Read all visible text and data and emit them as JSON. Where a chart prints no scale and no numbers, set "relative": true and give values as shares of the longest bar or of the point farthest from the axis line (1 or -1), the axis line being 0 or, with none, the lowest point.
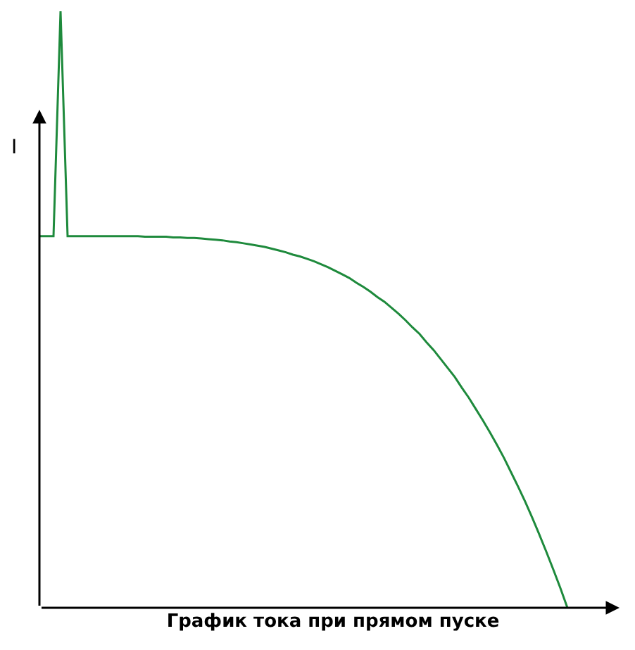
{
  "chart_data": {
    "type": "line",
    "relative": true,
    "xlabel": "График тока при прямом пуске",
    "ylabel": "I",
    "categories": [
      null,
      null,
      null,
      null,
      null,
      null,
      null,
      null,
      null,
      null,
      null,
      null,
      null,
      null,
      null,
      null,
      null,
      null,
      null,
      null,
      null,
      null,
      null,
      null,
      null,
      null,
      null,
      null,
      null,
      null,
      null,
      null,
      null,
      null,
      null,
      null,
      null,
      null,
      null,
      null,
      null,
      null,
      null,
      null,
      null,
      null,
      null,
      null,
      null,
      null,
      null,
      null,
      null,
      null,
      null,
      null,
      null,
      null,
      null,
      null,
      null,
      null,
      null,
      null,
      null,
      null,
      null,
      null,
      null,
      null,
      null,
      null,
      null,
      null,
      null,
      null
    ],
    "series": [
      {
        "color": "#1e8a3c",
        "values": [
          0.623,
          0.623,
          0.623,
          1,
          0.623,
          0.623,
          0.623,
          0.623,
          0.623,
          0.623,
          0.623,
          0.623,
          0.623,
          0.623,
          0.623,
          0.622,
          0.622,
          0.622,
          0.622,
          0.621,
          0.621,
          0.62,
          0.62,
          0.619,
          0.618,
          0.617,
          0.616,
          0.614,
          0.613,
          0.611,
          0.609,
          0.607,
          0.605,
          0.602,
          0.599,
          0.596,
          0.592,
          0.589,
          0.585,
          0.581,
          0.576,
          0.571,
          0.565,
          0.559,
          0.553,
          0.545,
          0.538,
          0.53,
          0.521,
          0.513,
          0.503,
          0.493,
          0.482,
          0.47,
          0.459,
          0.445,
          0.432,
          0.417,
          0.402,
          0.387,
          0.369,
          0.352,
          0.333,
          0.314,
          0.294,
          0.273,
          0.251,
          0.227,
          0.203,
          0.178,
          0.151,
          0.123,
          0.094,
          0.064,
          0.033,
          0
        ]
      }
    ],
    "marker": "none",
    "line_style": "solid"
  }
}
